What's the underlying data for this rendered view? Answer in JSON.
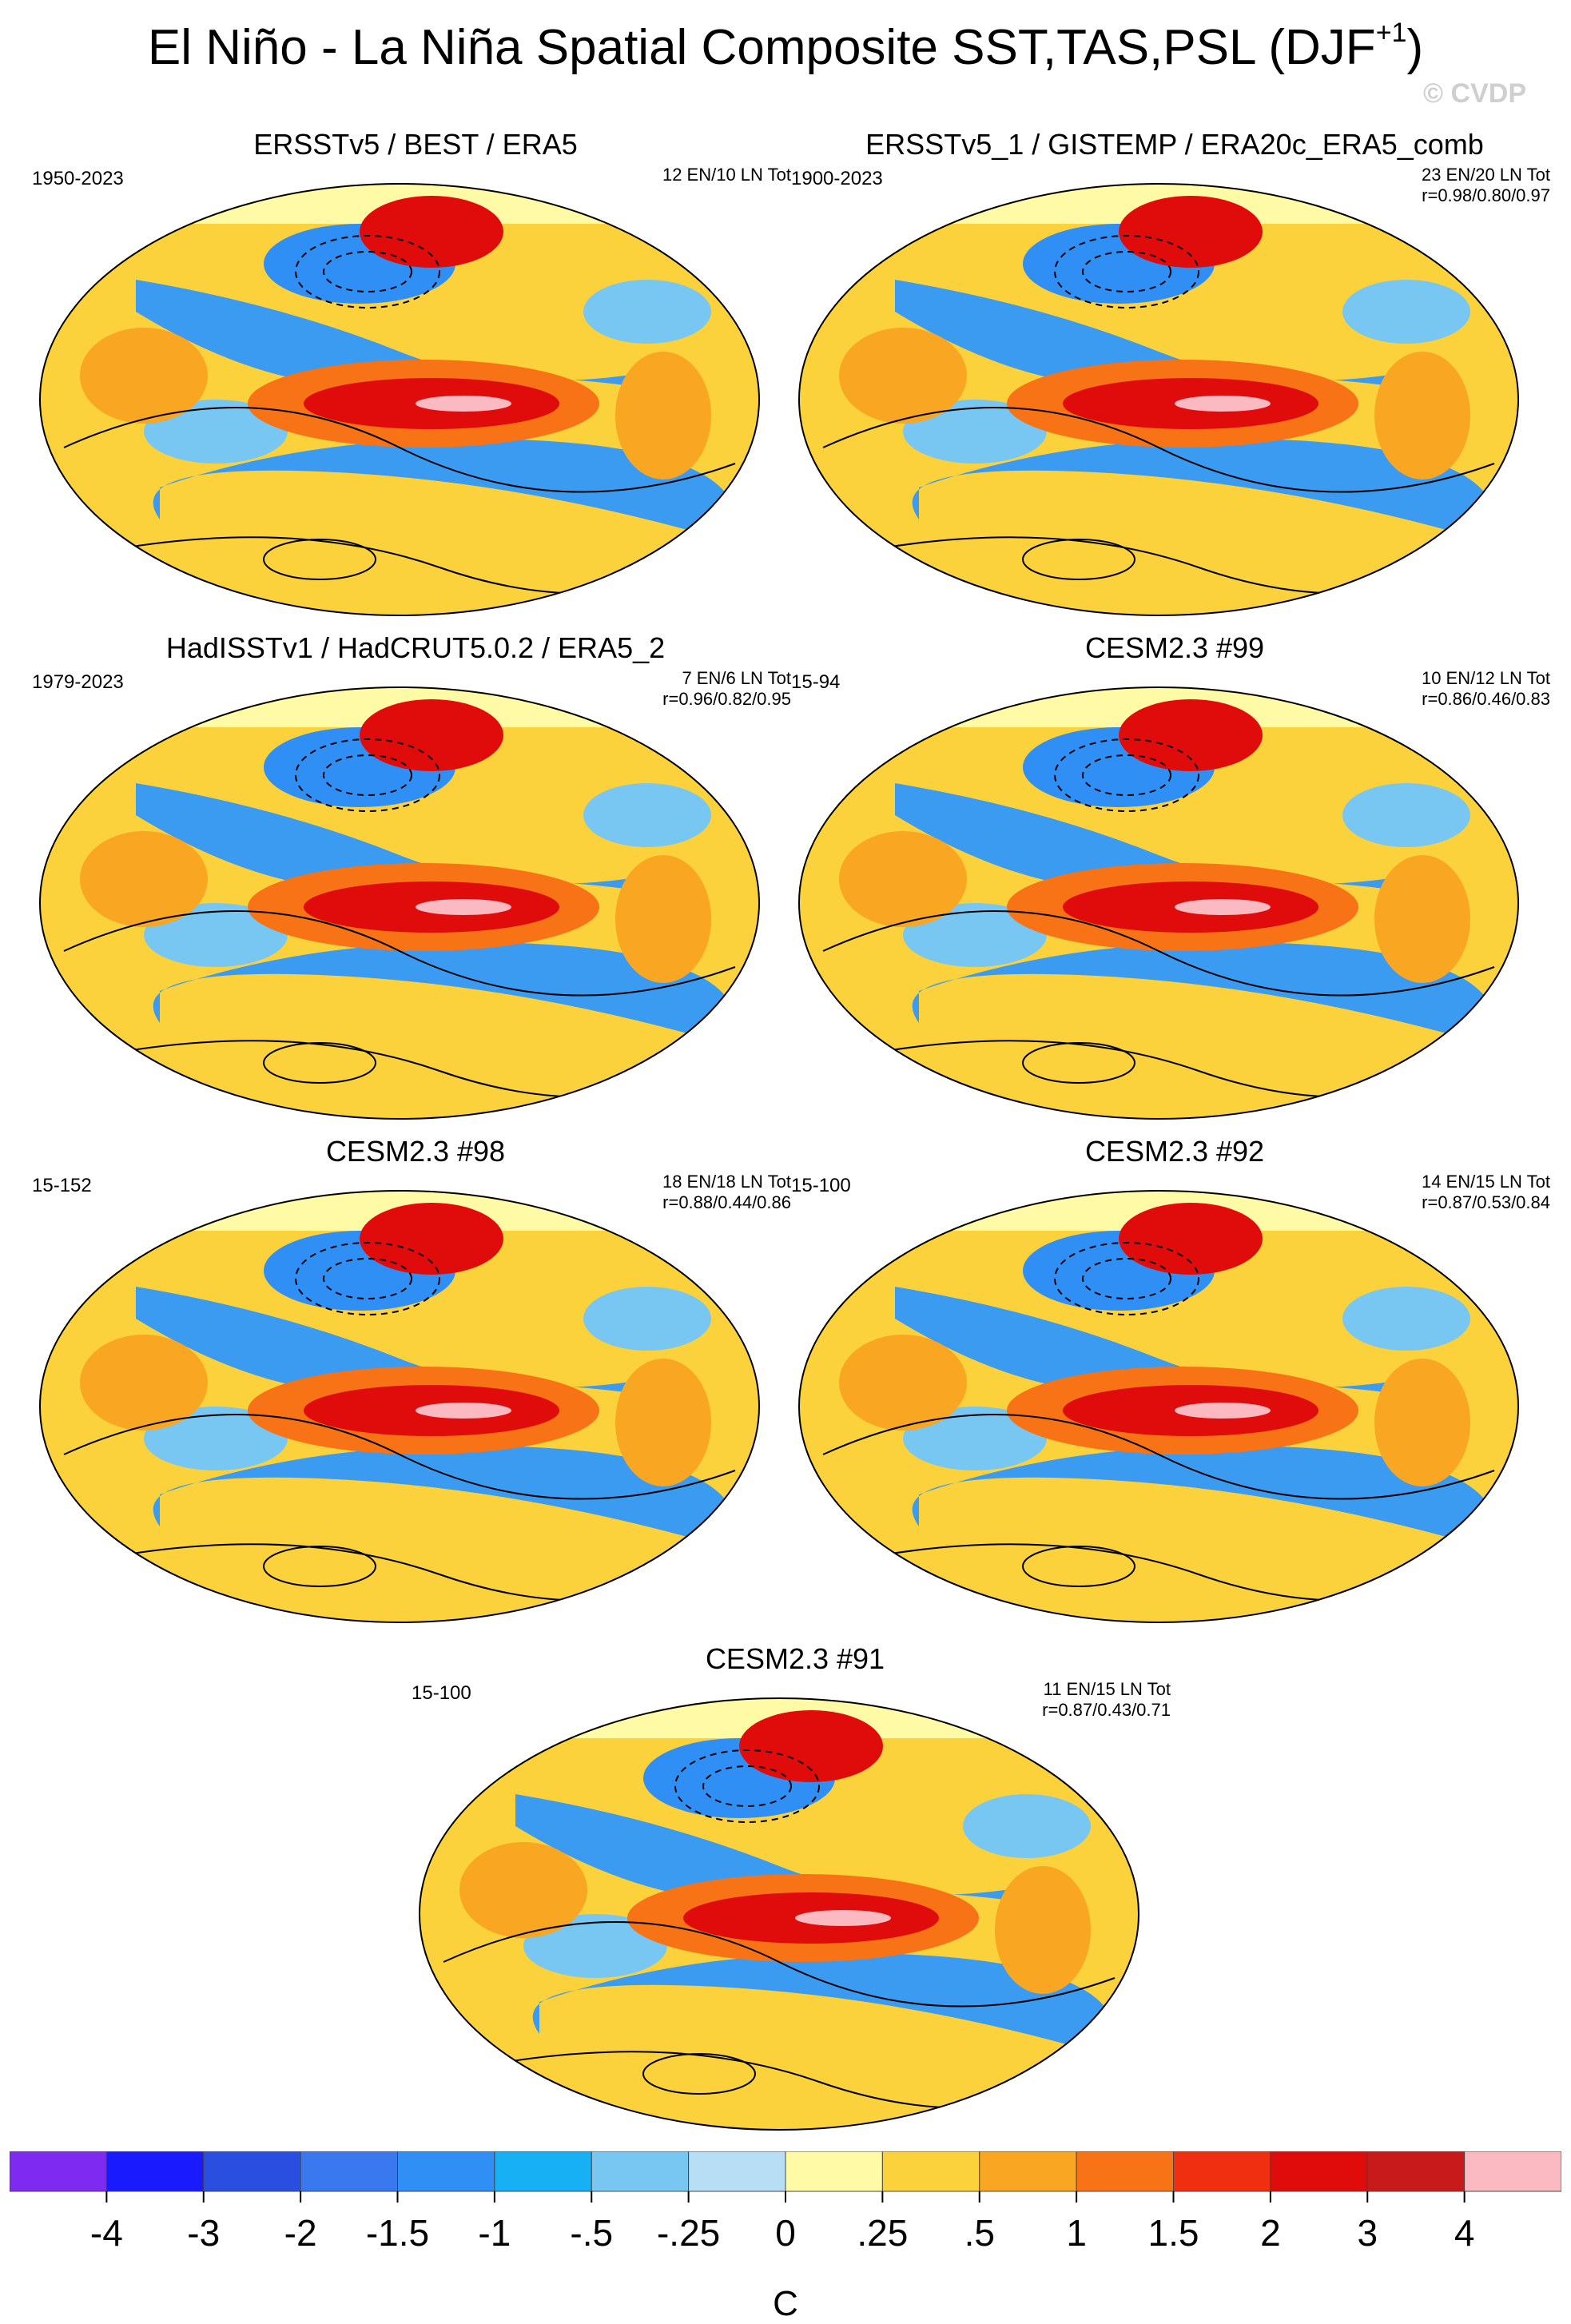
{
  "title": {
    "main": "El Niño - La Niña Spatial Composite SST,TAS,PSL (DJF",
    "superscript": "+1",
    "close": ")"
  },
  "watermark": "© CVDP",
  "chart_data": [
    {
      "type": "heatmap",
      "title": "ERSSTv5 / BEST / ERA5",
      "period": "1950-2023",
      "stats_line1": "12 EN/10 LN Tot",
      "stats_line2": ""
    },
    {
      "type": "heatmap",
      "title": "ERSSTv5_1 / GISTEMP / ERA20c_ERA5_comb",
      "period": "1900-2023",
      "stats_line1": "23 EN/20 LN Tot",
      "stats_line2": "r=0.98/0.80/0.97"
    },
    {
      "type": "heatmap",
      "title": "HadISSTv1 / HadCRUT5.0.2 / ERA5_2",
      "period": "1979-2023",
      "stats_line1": "7 EN/6 LN Tot",
      "stats_line2": "r=0.96/0.82/0.95"
    },
    {
      "type": "heatmap",
      "title": "CESM2.3 #99",
      "period": "15-94",
      "stats_line1": "10 EN/12 LN Tot",
      "stats_line2": "r=0.86/0.46/0.83"
    },
    {
      "type": "heatmap",
      "title": "CESM2.3 #98",
      "period": "15-152",
      "stats_line1": "18 EN/18 LN Tot",
      "stats_line2": "r=0.88/0.44/0.86"
    },
    {
      "type": "heatmap",
      "title": "CESM2.3 #92",
      "period": "15-100",
      "stats_line1": "14 EN/15 LN Tot",
      "stats_line2": "r=0.87/0.53/0.84"
    },
    {
      "type": "heatmap",
      "title": "CESM2.3 #91",
      "period": "15-100",
      "stats_line1": "11 EN/15 LN Tot",
      "stats_line2": "r=0.87/0.43/0.71"
    }
  ],
  "colorbar": {
    "unit": "C",
    "ticks": [
      "-4",
      "-3",
      "-2",
      "-1.5",
      "-1",
      "-.5",
      "-.25",
      "0",
      ".25",
      ".5",
      "1",
      "1.5",
      "2",
      "3",
      "4"
    ],
    "colors": [
      "#7f2af0",
      "#1a1aff",
      "#2a4fe0",
      "#3a78f0",
      "#2f8ff5",
      "#18b0f5",
      "#78c7f3",
      "#b8def5",
      "#fffaa6",
      "#fbd23c",
      "#f9a623",
      "#f77316",
      "#f02f10",
      "#e00b0b",
      "#c81a1a",
      "#fbb9c2"
    ]
  }
}
